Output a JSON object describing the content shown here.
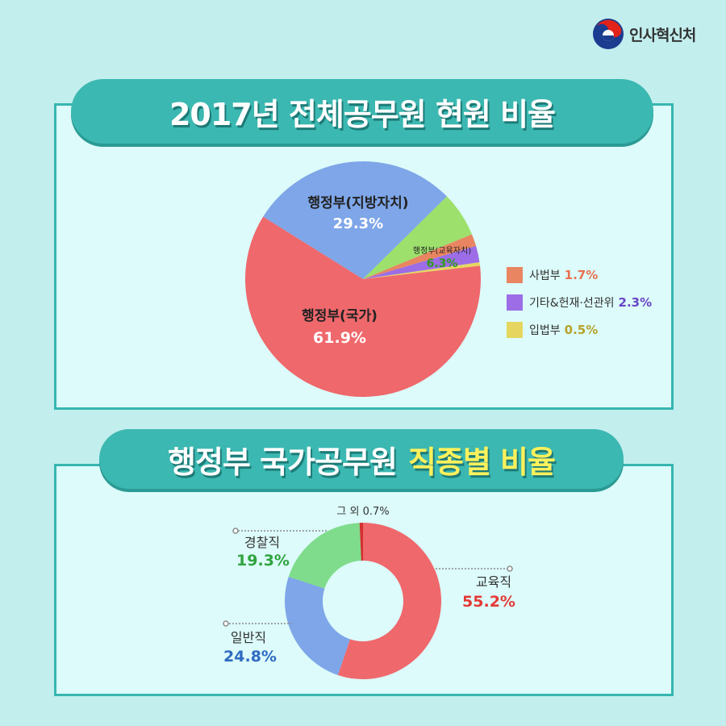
{
  "logo": {
    "text": "인사혁신처"
  },
  "section1": {
    "title": "2017년 전체공무원 현원 비율"
  },
  "section2": {
    "title_part1": "행정부 국가공무원",
    "title_part2": "직종별 비율"
  },
  "colors": {
    "background": "#c3eeee",
    "panel": "#dcfbfa",
    "banner": "#3bb8b1",
    "highlight": "#fff15c"
  },
  "chart_data": [
    {
      "type": "pie",
      "categories": [
        "행정부(국가)",
        "행정부(지방자치)",
        "행정부(교육자치)",
        "사법부",
        "기타&헌재·선관위",
        "입법부"
      ],
      "values": [
        61.9,
        29.3,
        6.3,
        1.7,
        2.3,
        0.5
      ],
      "labels": [
        "61.9%",
        "29.3%",
        "6.3%",
        "1.7%",
        "2.3%",
        "0.5%"
      ],
      "colors": [
        "#ef686c",
        "#7ea6e8",
        "#9de06c",
        "#e98560",
        "#9c6de6",
        "#e6d660"
      ],
      "label_colors": [
        "#ffffff",
        "#ffffff",
        "#2f9a1e",
        "#e97050",
        "#6a45c6",
        "#b8a22a"
      ],
      "legend": [
        "사법부",
        "기타&헌재·선관위",
        "입법부"
      ],
      "legend_placement": "right"
    },
    {
      "type": "pie",
      "subtype": "donut",
      "categories": [
        "교육직",
        "일반직",
        "경찰직",
        "그 외"
      ],
      "values": [
        55.2,
        24.8,
        19.3,
        0.7
      ],
      "labels": [
        "55.2%",
        "24.8%",
        "19.3%",
        "0.7%"
      ],
      "colors": [
        "#ef686c",
        "#7ea6e8",
        "#7fdc8c",
        "#d32f2f"
      ],
      "label_colors": [
        "#e53935",
        "#2f6bc2",
        "#2fa33e",
        "#333333"
      ]
    }
  ]
}
